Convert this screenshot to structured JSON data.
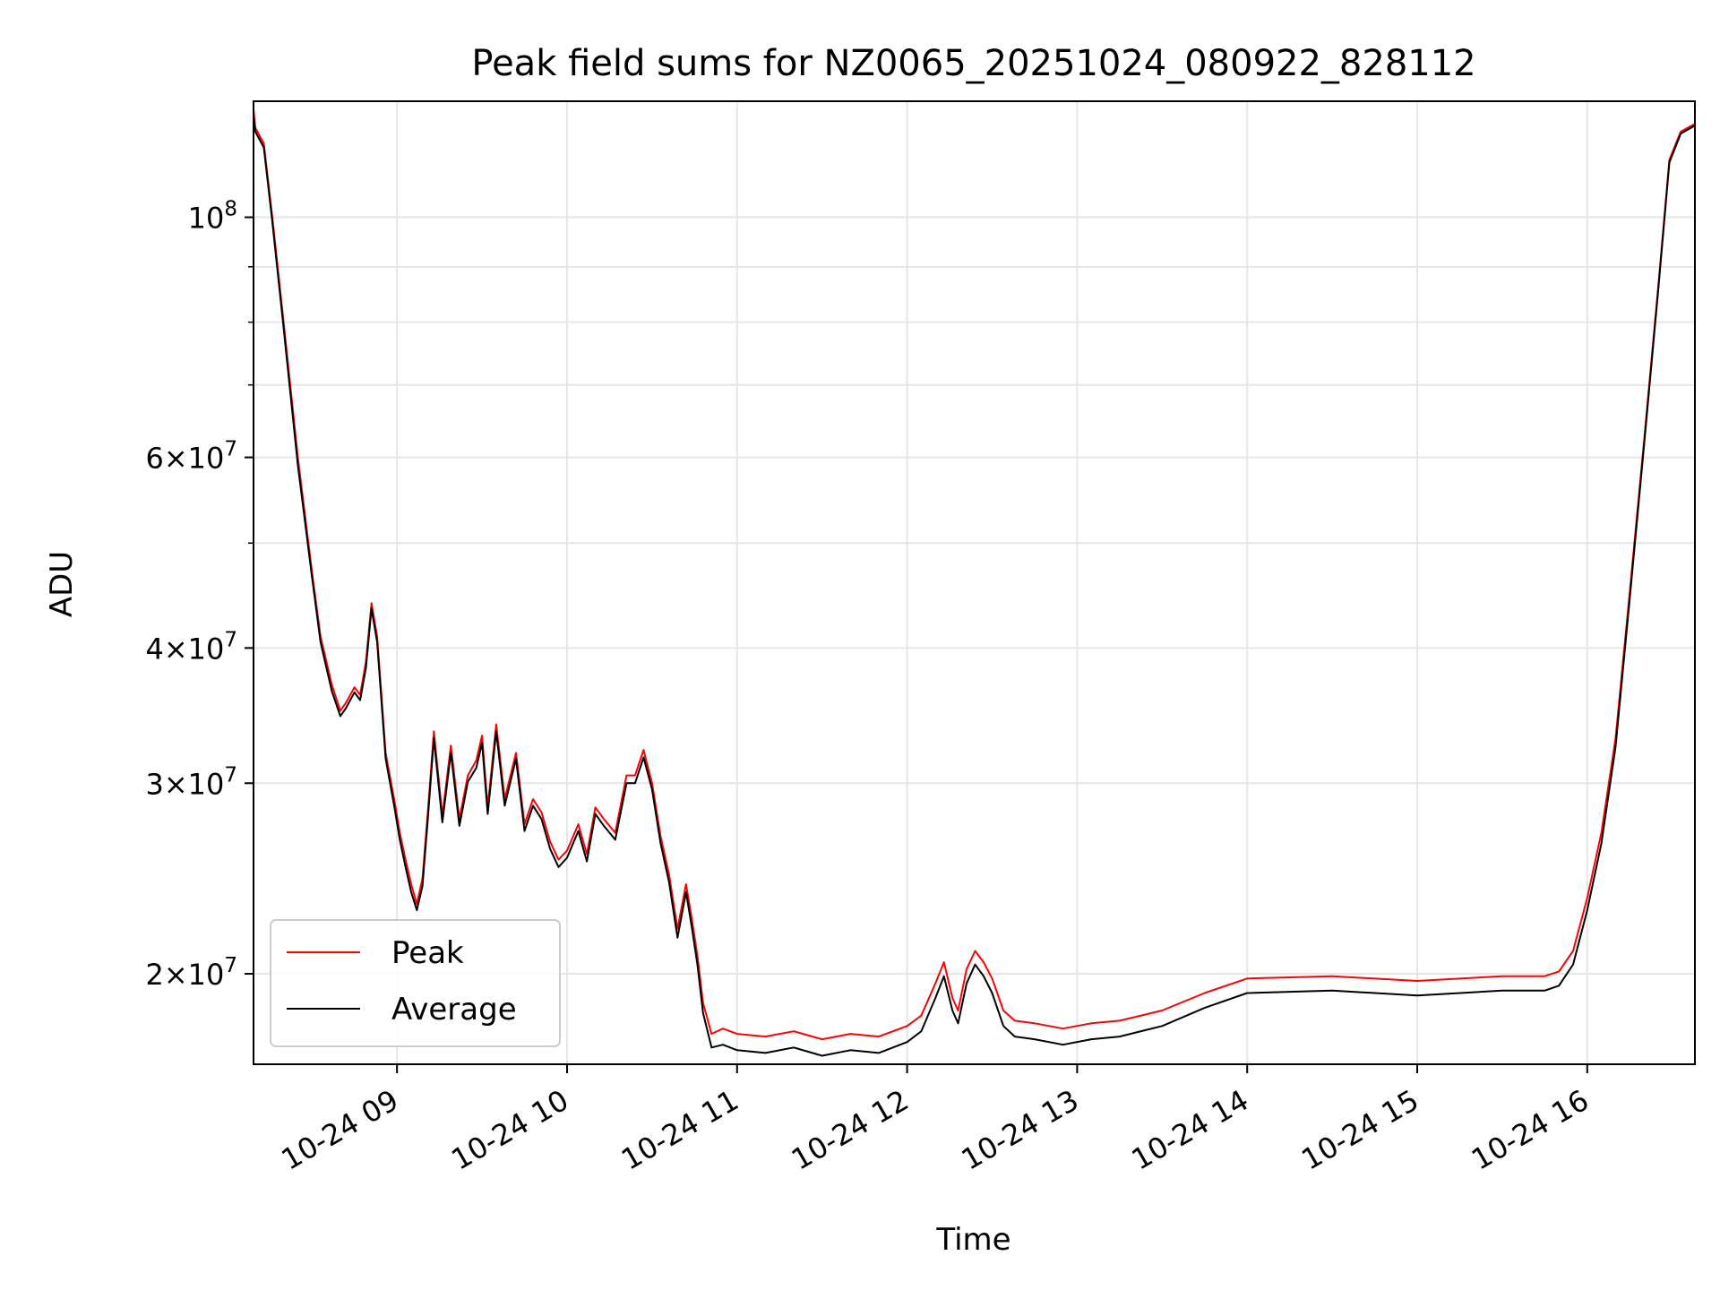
{
  "chart_data": {
    "type": "line",
    "title": "Peak field sums for NZ0065_20251024_080922_828112",
    "xlabel": "Time",
    "ylabel": "ADU",
    "x_range": [
      "2025-10-24T08:09:22",
      "2025-10-24T16:38:00"
    ],
    "ylim": [
      16500000,
      128000000
    ],
    "y_scale": "log",
    "grid": true,
    "legend": "lower-left",
    "x_ticks": [
      "2025-10-24T09:00:00",
      "2025-10-24T10:00:00",
      "2025-10-24T11:00:00",
      "2025-10-24T12:00:00",
      "2025-10-24T13:00:00",
      "2025-10-24T14:00:00",
      "2025-10-24T15:00:00",
      "2025-10-24T16:00:00"
    ],
    "x_tick_labels": [
      "10-24 09",
      "10-24 10",
      "10-24 11",
      "10-24 12",
      "10-24 13",
      "10-24 14",
      "10-24 15",
      "10-24 16"
    ],
    "y_ticks": [
      {
        "value": 100000000,
        "base": "10",
        "exp": "8"
      },
      {
        "value": 60000000,
        "mant": "6",
        "base": "10",
        "exp": "7"
      },
      {
        "value": 40000000,
        "mant": "4",
        "base": "10",
        "exp": "7"
      },
      {
        "value": 30000000,
        "mant": "3",
        "base": "10",
        "exp": "7"
      },
      {
        "value": 20000000,
        "mant": "2",
        "base": "10",
        "exp": "7"
      }
    ],
    "y_minor_ticks": [
      50000000,
      70000000,
      80000000,
      90000000
    ],
    "series": [
      {
        "name": "Peak",
        "color": "#ff0000",
        "x": [
          "2025-10-24T08:09:22",
          "2025-10-24T08:10:00",
          "2025-10-24T08:13:00",
          "2025-10-24T08:16:00",
          "2025-10-24T08:20:00",
          "2025-10-24T08:25:00",
          "2025-10-24T08:30:00",
          "2025-10-24T08:33:00",
          "2025-10-24T08:37:00",
          "2025-10-24T08:40:00",
          "2025-10-24T08:42:00",
          "2025-10-24T08:45:00",
          "2025-10-24T08:47:00",
          "2025-10-24T08:49:00",
          "2025-10-24T08:51:00",
          "2025-10-24T08:53:00",
          "2025-10-24T08:56:00",
          "2025-10-24T08:59:00",
          "2025-10-24T09:01:00",
          "2025-10-24T09:03:00",
          "2025-10-24T09:05:00",
          "2025-10-24T09:07:00",
          "2025-10-24T09:09:00",
          "2025-10-24T09:11:00",
          "2025-10-24T09:13:00",
          "2025-10-24T09:16:00",
          "2025-10-24T09:19:00",
          "2025-10-24T09:22:00",
          "2025-10-24T09:25:00",
          "2025-10-24T09:28:00",
          "2025-10-24T09:30:00",
          "2025-10-24T09:32:00",
          "2025-10-24T09:35:00",
          "2025-10-24T09:38:00",
          "2025-10-24T09:42:00",
          "2025-10-24T09:45:00",
          "2025-10-24T09:48:00",
          "2025-10-24T09:51:00",
          "2025-10-24T09:54:00",
          "2025-10-24T09:57:00",
          "2025-10-24T10:00:00",
          "2025-10-24T10:04:00",
          "2025-10-24T10:07:00",
          "2025-10-24T10:10:00",
          "2025-10-24T10:13:00",
          "2025-10-24T10:17:00",
          "2025-10-24T10:21:00",
          "2025-10-24T10:24:00",
          "2025-10-24T10:27:00",
          "2025-10-24T10:30:00",
          "2025-10-24T10:33:00",
          "2025-10-24T10:36:00",
          "2025-10-24T10:39:00",
          "2025-10-24T10:42:00",
          "2025-10-24T10:44:00",
          "2025-10-24T10:46:00",
          "2025-10-24T10:48:00",
          "2025-10-24T10:51:00",
          "2025-10-24T10:55:00",
          "2025-10-24T11:00:00",
          "2025-10-24T11:10:00",
          "2025-10-24T11:20:00",
          "2025-10-24T11:30:00",
          "2025-10-24T11:40:00",
          "2025-10-24T11:50:00",
          "2025-10-24T12:00:00",
          "2025-10-24T12:05:00",
          "2025-10-24T12:10:00",
          "2025-10-24T12:13:00",
          "2025-10-24T12:16:00",
          "2025-10-24T12:18:00",
          "2025-10-24T12:21:00",
          "2025-10-24T12:24:00",
          "2025-10-24T12:27:00",
          "2025-10-24T12:30:00",
          "2025-10-24T12:34:00",
          "2025-10-24T12:38:00",
          "2025-10-24T12:45:00",
          "2025-10-24T12:55:00",
          "2025-10-24T13:05:00",
          "2025-10-24T13:15:00",
          "2025-10-24T13:30:00",
          "2025-10-24T13:45:00",
          "2025-10-24T14:00:00",
          "2025-10-24T14:30:00",
          "2025-10-24T15:00:00",
          "2025-10-24T15:30:00",
          "2025-10-24T15:45:00",
          "2025-10-24T15:50:00",
          "2025-10-24T15:55:00",
          "2025-10-24T16:00:00",
          "2025-10-24T16:05:00",
          "2025-10-24T16:10:00",
          "2025-10-24T16:15:00",
          "2025-10-24T16:20:00",
          "2025-10-24T16:25:00",
          "2025-10-24T16:29:00",
          "2025-10-24T16:33:00",
          "2025-10-24T16:38:00"
        ],
        "y": [
          126000000,
          121000000,
          117000000,
          100000000,
          80000000,
          60000000,
          47000000,
          41000000,
          37000000,
          35000000,
          35600000,
          36800000,
          36200000,
          38800000,
          44000000,
          41000000,
          32000000,
          29000000,
          27000000,
          25500000,
          24200000,
          23200000,
          24500000,
          28500000,
          33500000,
          28000000,
          32500000,
          27800000,
          30500000,
          31500000,
          33200000,
          28500000,
          34000000,
          29000000,
          32000000,
          27500000,
          29000000,
          28200000,
          26500000,
          25500000,
          26000000,
          27500000,
          25800000,
          28500000,
          27800000,
          27000000,
          30500000,
          30500000,
          32200000,
          30000000,
          26800000,
          24700000,
          22000000,
          24200000,
          22500000,
          20800000,
          18800000,
          17600000,
          17800000,
          17600000,
          17500000,
          17700000,
          17400000,
          17600000,
          17500000,
          17900000,
          18300000,
          19600000,
          20500000,
          19000000,
          18500000,
          20200000,
          21000000,
          20500000,
          19800000,
          18500000,
          18100000,
          18000000,
          17800000,
          18000000,
          18100000,
          18500000,
          19200000,
          19800000,
          19900000,
          19700000,
          19900000,
          19900000,
          20100000,
          21000000,
          23500000,
          27000000,
          33000000,
          45000000,
          62000000,
          86000000,
          113000000,
          120000000,
          122000000
        ]
      },
      {
        "name": "Average",
        "color": "#000000",
        "x": [
          "2025-10-24T08:09:22",
          "2025-10-24T08:10:00",
          "2025-10-24T08:13:00",
          "2025-10-24T08:16:00",
          "2025-10-24T08:20:00",
          "2025-10-24T08:25:00",
          "2025-10-24T08:30:00",
          "2025-10-24T08:33:00",
          "2025-10-24T08:37:00",
          "2025-10-24T08:40:00",
          "2025-10-24T08:42:00",
          "2025-10-24T08:45:00",
          "2025-10-24T08:47:00",
          "2025-10-24T08:49:00",
          "2025-10-24T08:51:00",
          "2025-10-24T08:53:00",
          "2025-10-24T08:56:00",
          "2025-10-24T08:59:00",
          "2025-10-24T09:01:00",
          "2025-10-24T09:03:00",
          "2025-10-24T09:05:00",
          "2025-10-24T09:07:00",
          "2025-10-24T09:09:00",
          "2025-10-24T09:11:00",
          "2025-10-24T09:13:00",
          "2025-10-24T09:16:00",
          "2025-10-24T09:19:00",
          "2025-10-24T09:22:00",
          "2025-10-24T09:25:00",
          "2025-10-24T09:28:00",
          "2025-10-24T09:30:00",
          "2025-10-24T09:32:00",
          "2025-10-24T09:35:00",
          "2025-10-24T09:38:00",
          "2025-10-24T09:42:00",
          "2025-10-24T09:45:00",
          "2025-10-24T09:48:00",
          "2025-10-24T09:51:00",
          "2025-10-24T09:54:00",
          "2025-10-24T09:57:00",
          "2025-10-24T10:00:00",
          "2025-10-24T10:04:00",
          "2025-10-24T10:07:00",
          "2025-10-24T10:10:00",
          "2025-10-24T10:13:00",
          "2025-10-24T10:17:00",
          "2025-10-24T10:21:00",
          "2025-10-24T10:24:00",
          "2025-10-24T10:27:00",
          "2025-10-24T10:30:00",
          "2025-10-24T10:33:00",
          "2025-10-24T10:36:00",
          "2025-10-24T10:39:00",
          "2025-10-24T10:42:00",
          "2025-10-24T10:44:00",
          "2025-10-24T10:46:00",
          "2025-10-24T10:48:00",
          "2025-10-24T10:51:00",
          "2025-10-24T10:55:00",
          "2025-10-24T11:00:00",
          "2025-10-24T11:10:00",
          "2025-10-24T11:20:00",
          "2025-10-24T11:30:00",
          "2025-10-24T11:40:00",
          "2025-10-24T11:50:00",
          "2025-10-24T12:00:00",
          "2025-10-24T12:05:00",
          "2025-10-24T12:10:00",
          "2025-10-24T12:13:00",
          "2025-10-24T12:16:00",
          "2025-10-24T12:18:00",
          "2025-10-24T12:21:00",
          "2025-10-24T12:24:00",
          "2025-10-24T12:27:00",
          "2025-10-24T12:30:00",
          "2025-10-24T12:34:00",
          "2025-10-24T12:38:00",
          "2025-10-24T12:45:00",
          "2025-10-24T12:55:00",
          "2025-10-24T13:05:00",
          "2025-10-24T13:15:00",
          "2025-10-24T13:30:00",
          "2025-10-24T13:45:00",
          "2025-10-24T14:00:00",
          "2025-10-24T14:30:00",
          "2025-10-24T15:00:00",
          "2025-10-24T15:30:00",
          "2025-10-24T15:45:00",
          "2025-10-24T15:50:00",
          "2025-10-24T15:55:00",
          "2025-10-24T16:00:00",
          "2025-10-24T16:05:00",
          "2025-10-24T16:10:00",
          "2025-10-24T16:15:00",
          "2025-10-24T16:20:00",
          "2025-10-24T16:25:00",
          "2025-10-24T16:29:00",
          "2025-10-24T16:33:00",
          "2025-10-24T16:38:00"
        ],
        "y": [
          124000000,
          120000000,
          116000000,
          99000000,
          79000000,
          59000000,
          46500000,
          40500000,
          36500000,
          34600000,
          35200000,
          36400000,
          35800000,
          38300000,
          43500000,
          40500000,
          31600000,
          28600000,
          26600000,
          25100000,
          23800000,
          22900000,
          24100000,
          28100000,
          33000000,
          27600000,
          32000000,
          27400000,
          30100000,
          31000000,
          32700000,
          28100000,
          33500000,
          28600000,
          31600000,
          27100000,
          28600000,
          27800000,
          26100000,
          25100000,
          25600000,
          27100000,
          25400000,
          28100000,
          27400000,
          26600000,
          30000000,
          30000000,
          31700000,
          29600000,
          26400000,
          24300000,
          21600000,
          23800000,
          22100000,
          20400000,
          18400000,
          17100000,
          17200000,
          17000000,
          16900000,
          17100000,
          16800000,
          17000000,
          16900000,
          17300000,
          17700000,
          19000000,
          19900000,
          18500000,
          18000000,
          19600000,
          20400000,
          19900000,
          19200000,
          17900000,
          17500000,
          17400000,
          17200000,
          17400000,
          17500000,
          17900000,
          18600000,
          19200000,
          19300000,
          19100000,
          19300000,
          19300000,
          19500000,
          20400000,
          22900000,
          26400000,
          32400000,
          44400000,
          61400000,
          85400000,
          112400000,
          119500000,
          121500000
        ]
      }
    ]
  }
}
